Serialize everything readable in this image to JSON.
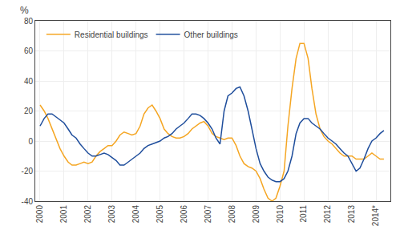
{
  "chart_data": {
    "type": "line",
    "ylabel": "%",
    "x": [
      2000.0,
      2000.17,
      2000.33,
      2000.5,
      2000.67,
      2000.83,
      2001.0,
      2001.17,
      2001.33,
      2001.5,
      2001.67,
      2001.83,
      2002.0,
      2002.17,
      2002.33,
      2002.5,
      2002.67,
      2002.83,
      2003.0,
      2003.17,
      2003.33,
      2003.5,
      2003.67,
      2003.83,
      2004.0,
      2004.17,
      2004.33,
      2004.5,
      2004.67,
      2004.83,
      2005.0,
      2005.17,
      2005.33,
      2005.5,
      2005.67,
      2005.83,
      2006.0,
      2006.17,
      2006.33,
      2006.5,
      2006.67,
      2006.83,
      2007.0,
      2007.17,
      2007.33,
      2007.5,
      2007.67,
      2007.83,
      2008.0,
      2008.17,
      2008.33,
      2008.5,
      2008.67,
      2008.83,
      2009.0,
      2009.17,
      2009.33,
      2009.5,
      2009.67,
      2009.83,
      2010.0,
      2010.17,
      2010.33,
      2010.5,
      2010.67,
      2010.83,
      2011.0,
      2011.17,
      2011.33,
      2011.5,
      2011.67,
      2011.83,
      2012.0,
      2012.17,
      2012.33,
      2012.5,
      2012.67,
      2012.83,
      2013.0,
      2013.17,
      2013.33,
      2013.5,
      2013.67,
      2013.83,
      2014.0,
      2014.17,
      2014.33
    ],
    "series": [
      {
        "name": "Residential buildings",
        "color": "#f5a623",
        "values": [
          24,
          20,
          15,
          8,
          2,
          -5,
          -10,
          -14,
          -16,
          -16,
          -15,
          -14,
          -15,
          -14,
          -10,
          -7,
          -5,
          -3,
          -3,
          0,
          4,
          6,
          5,
          4,
          5,
          10,
          18,
          22,
          24,
          20,
          15,
          8,
          5,
          3,
          2,
          2,
          3,
          5,
          8,
          10,
          12,
          13,
          10,
          5,
          3,
          2,
          1,
          2,
          2,
          -3,
          -10,
          -15,
          -17,
          -18,
          -20,
          -25,
          -32,
          -38,
          -40,
          -38,
          -30,
          -20,
          10,
          35,
          55,
          65,
          65,
          55,
          35,
          18,
          8,
          3,
          0,
          -2,
          -5,
          -8,
          -10,
          -10,
          -10,
          -12,
          -12,
          -12,
          -10,
          -8,
          -10,
          -12,
          -12
        ]
      },
      {
        "name": "Other buildings",
        "color": "#1f4e9c",
        "values": [
          10,
          15,
          18,
          18,
          16,
          14,
          12,
          8,
          4,
          2,
          -2,
          -5,
          -8,
          -10,
          -10,
          -9,
          -8,
          -9,
          -11,
          -13,
          -16,
          -16,
          -14,
          -12,
          -10,
          -8,
          -5,
          -3,
          -2,
          -1,
          0,
          2,
          3,
          5,
          8,
          10,
          12,
          15,
          18,
          18,
          17,
          15,
          12,
          8,
          2,
          -2,
          20,
          30,
          32,
          35,
          36,
          30,
          20,
          8,
          -5,
          -15,
          -20,
          -24,
          -26,
          -27,
          -27,
          -25,
          -20,
          -10,
          5,
          12,
          15,
          15,
          12,
          10,
          8,
          5,
          2,
          0,
          -2,
          -5,
          -8,
          -10,
          -15,
          -20,
          -18,
          -12,
          -5,
          0,
          2,
          5,
          7
        ]
      }
    ],
    "xlim": [
      1999.8,
      2014.6
    ],
    "xticks": [
      2000,
      2001,
      2002,
      2003,
      2004,
      2005,
      2006,
      2007,
      2008,
      2009,
      2010,
      2011,
      2012,
      2013,
      {
        "value": 2014,
        "label": "2014*"
      }
    ],
    "ylim": [
      -40,
      80
    ],
    "yticks": [
      -40,
      -20,
      0,
      20,
      40,
      60,
      80
    ],
    "grid": true,
    "legend": "upper left"
  }
}
